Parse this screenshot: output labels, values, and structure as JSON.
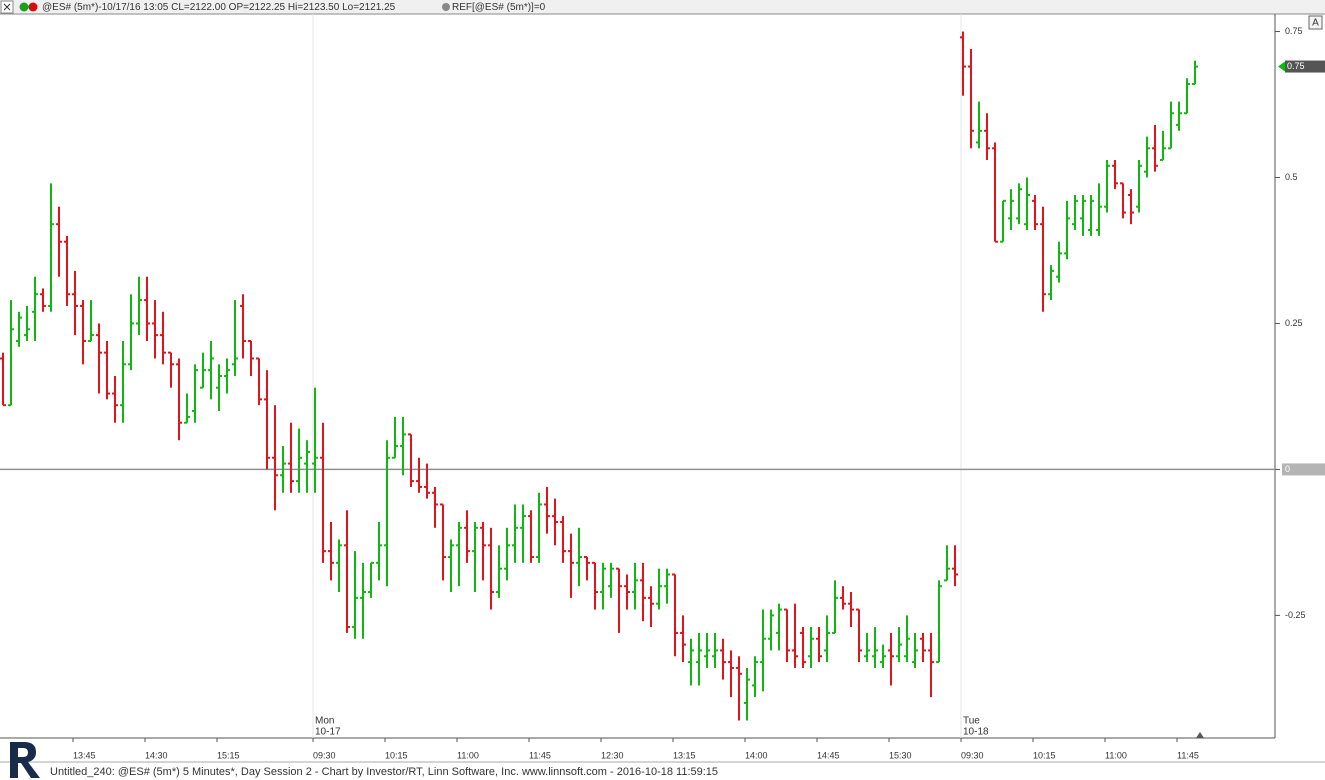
{
  "header": {
    "symbol_line": "@ES# (5m*)-10/17/16 13:05 CL=2122.00 OP=2122.25 Hi=2123.50 Lo=2121.25",
    "ref_line": "REF[@ES# (5m*)]=0",
    "button": "A"
  },
  "footer": "Untitled_240: @ES# (5m*) 5 Minutes*, Day Session 2 - Chart by Investor/RT, Linn Software, Inc. www.linnsoft.com - 2016-10-18 11:59:15",
  "chart_data": {
    "type": "ohlc",
    "categories": [
      null,
      null,
      null,
      null,
      null,
      null,
      null,
      null,
      null,
      "13:45",
      null,
      null,
      null,
      null,
      null,
      null,
      null,
      null,
      "14:30",
      null,
      null,
      null,
      null,
      null,
      null,
      null,
      null,
      "15:15",
      null,
      null,
      null,
      null,
      null,
      null,
      null,
      null,
      null,
      null,
      null,
      "09:30",
      null,
      null,
      null,
      null,
      null,
      null,
      null,
      null,
      "10:15",
      null,
      null,
      null,
      null,
      null,
      null,
      null,
      null,
      "11:00",
      null,
      null,
      null,
      null,
      null,
      null,
      null,
      null,
      "11:45",
      null,
      null,
      null,
      null,
      null,
      null,
      null,
      null,
      "12:30",
      null,
      null,
      null,
      null,
      null,
      null,
      null,
      null,
      "13:15",
      null,
      null,
      null,
      null,
      null,
      null,
      null,
      null,
      "14:00",
      null,
      null,
      null,
      null,
      null,
      null,
      null,
      null,
      "14:45",
      null,
      null,
      null,
      null,
      null,
      null,
      null,
      null,
      "15:30",
      null,
      null,
      null,
      null,
      null,
      null,
      null,
      null,
      "09:30",
      null,
      null,
      null,
      null,
      null,
      null,
      null,
      null,
      "10:15",
      null,
      null,
      null,
      null,
      null,
      null,
      null,
      null,
      "11:00",
      null,
      null,
      null,
      null,
      null,
      null,
      null,
      null,
      "11:45",
      null,
      null
    ],
    "open": [
      0.19,
      0.11,
      0.22,
      0.23,
      0.27,
      0.3,
      0.28,
      0.42,
      0.39,
      0.3,
      0.28,
      0.22,
      0.23,
      0.2,
      0.13,
      0.11,
      0.18,
      0.25,
      0.29,
      0.25,
      0.23,
      0.2,
      0.18,
      0.08,
      0.1,
      0.14,
      0.17,
      0.14,
      0.16,
      0.18,
      0.28,
      0.22,
      0.19,
      0.12,
      0.02,
      -0.01,
      0.01,
      -0.02,
      0.01,
      0.01,
      0.02,
      -0.14,
      -0.16,
      -0.13,
      -0.27,
      -0.22,
      -0.21,
      -0.16,
      -0.13,
      0.02,
      0.04,
      0.06,
      -0.02,
      -0.03,
      -0.04,
      -0.06,
      -0.15,
      -0.13,
      -0.1,
      -0.14,
      -0.1,
      -0.13,
      -0.21,
      -0.17,
      -0.13,
      -0.1,
      -0.08,
      -0.15,
      -0.06,
      -0.08,
      -0.09,
      -0.14,
      -0.16,
      -0.15,
      -0.16,
      -0.21,
      -0.2,
      -0.17,
      -0.2,
      -0.21,
      -0.19,
      -0.22,
      -0.23,
      -0.2,
      -0.18,
      -0.28,
      -0.33,
      -0.33,
      -0.32,
      -0.32,
      -0.31,
      -0.33,
      -0.34,
      -0.4,
      -0.37,
      -0.33,
      -0.29,
      -0.28,
      -0.24,
      -0.31,
      -0.28,
      -0.32,
      -0.29,
      -0.31,
      -0.28,
      -0.22,
      -0.23,
      -0.24,
      -0.32,
      -0.32,
      -0.33,
      -0.31,
      -0.32,
      -0.32,
      -0.33,
      -0.29,
      -0.31,
      -0.33,
      -0.19,
      -0.17,
      0.74,
      0.69,
      0.56,
      0.58,
      0.55,
      0.39,
      0.43,
      0.43,
      0.42,
      0.46,
      0.42,
      0.3,
      0.33,
      0.37,
      0.42,
      0.43,
      0.41,
      0.41,
      0.45,
      0.52,
      0.49,
      0.47,
      0.45,
      0.51,
      0.55,
      0.53,
      0.55,
      0.59,
      0.61,
      0.66
    ],
    "high": [
      0.2,
      0.29,
      0.27,
      0.28,
      0.33,
      0.31,
      0.49,
      0.45,
      0.4,
      0.34,
      0.29,
      0.29,
      0.25,
      0.22,
      0.16,
      0.22,
      0.3,
      0.33,
      0.33,
      0.29,
      0.27,
      0.2,
      0.19,
      0.13,
      0.18,
      0.2,
      0.22,
      0.18,
      0.19,
      0.29,
      0.3,
      0.22,
      0.19,
      0.17,
      0.11,
      0.04,
      0.08,
      0.07,
      0.05,
      0.14,
      0.08,
      -0.09,
      -0.12,
      -0.07,
      -0.14,
      -0.16,
      -0.16,
      -0.09,
      0.05,
      0.09,
      0.09,
      0.06,
      0.02,
      0.01,
      -0.03,
      -0.06,
      -0.12,
      -0.09,
      -0.07,
      -0.09,
      -0.09,
      -0.1,
      -0.13,
      -0.1,
      -0.06,
      -0.06,
      -0.07,
      -0.04,
      -0.03,
      -0.05,
      -0.08,
      -0.11,
      -0.1,
      -0.15,
      -0.16,
      -0.16,
      -0.16,
      -0.17,
      -0.18,
      -0.16,
      -0.16,
      -0.2,
      -0.17,
      -0.17,
      -0.18,
      -0.25,
      -0.29,
      -0.28,
      -0.28,
      -0.28,
      -0.29,
      -0.31,
      -0.32,
      -0.34,
      -0.32,
      -0.24,
      -0.24,
      -0.23,
      -0.24,
      -0.23,
      -0.27,
      -0.27,
      -0.27,
      -0.25,
      -0.19,
      -0.2,
      -0.21,
      -0.24,
      -0.28,
      -0.27,
      -0.3,
      -0.28,
      -0.27,
      -0.25,
      -0.28,
      -0.28,
      -0.28,
      -0.19,
      -0.13,
      -0.13,
      0.75,
      0.72,
      0.63,
      0.61,
      0.56,
      0.46,
      0.48,
      0.49,
      0.5,
      0.47,
      0.45,
      0.35,
      0.39,
      0.46,
      0.47,
      0.47,
      0.47,
      0.49,
      0.53,
      0.53,
      0.49,
      0.48,
      0.53,
      0.57,
      0.59,
      0.58,
      0.63,
      0.63,
      0.67,
      0.7
    ],
    "low": [
      0.11,
      0.11,
      0.21,
      0.22,
      0.22,
      0.27,
      0.27,
      0.33,
      0.28,
      0.23,
      0.18,
      0.22,
      0.13,
      0.12,
      0.08,
      0.08,
      0.17,
      0.23,
      0.22,
      0.19,
      0.18,
      0.14,
      0.05,
      0.08,
      0.08,
      0.14,
      0.12,
      0.1,
      0.13,
      0.16,
      0.19,
      0.16,
      0.11,
      0.0,
      -0.07,
      -0.04,
      -0.04,
      -0.04,
      -0.04,
      -0.04,
      -0.16,
      -0.19,
      -0.21,
      -0.28,
      -0.29,
      -0.29,
      -0.22,
      -0.19,
      -0.2,
      0.02,
      -0.01,
      -0.03,
      -0.04,
      -0.05,
      -0.1,
      -0.19,
      -0.21,
      -0.2,
      -0.16,
      -0.21,
      -0.19,
      -0.24,
      -0.22,
      -0.19,
      -0.16,
      -0.16,
      -0.16,
      -0.16,
      -0.11,
      -0.13,
      -0.16,
      -0.22,
      -0.2,
      -0.19,
      -0.24,
      -0.24,
      -0.22,
      -0.28,
      -0.24,
      -0.24,
      -0.26,
      -0.27,
      -0.24,
      -0.23,
      -0.32,
      -0.33,
      -0.37,
      -0.37,
      -0.34,
      -0.34,
      -0.36,
      -0.39,
      -0.43,
      -0.43,
      -0.39,
      -0.38,
      -0.31,
      -0.31,
      -0.33,
      -0.34,
      -0.34,
      -0.34,
      -0.33,
      -0.33,
      -0.28,
      -0.24,
      -0.27,
      -0.33,
      -0.33,
      -0.34,
      -0.34,
      -0.37,
      -0.33,
      -0.33,
      -0.34,
      -0.33,
      -0.39,
      -0.33,
      -0.19,
      -0.2,
      0.64,
      0.55,
      0.55,
      0.53,
      0.39,
      0.39,
      0.41,
      0.42,
      0.41,
      0.41,
      0.27,
      0.29,
      0.32,
      0.36,
      0.41,
      0.4,
      0.4,
      0.4,
      0.44,
      0.48,
      0.43,
      0.42,
      0.44,
      0.5,
      0.51,
      0.53,
      0.55,
      0.58,
      0.61,
      0.66
    ],
    "close": [
      0.11,
      0.24,
      0.26,
      0.24,
      0.3,
      0.28,
      0.42,
      0.39,
      0.3,
      0.28,
      0.22,
      0.23,
      0.2,
      0.13,
      0.11,
      0.18,
      0.25,
      0.29,
      0.25,
      0.23,
      0.2,
      0.18,
      0.08,
      0.09,
      0.17,
      0.17,
      0.19,
      0.16,
      0.17,
      0.19,
      0.22,
      0.19,
      0.12,
      0.02,
      -0.01,
      0.01,
      -0.02,
      0.02,
      0.03,
      0.02,
      -0.14,
      -0.16,
      -0.13,
      -0.27,
      -0.22,
      -0.21,
      -0.16,
      -0.13,
      0.02,
      0.04,
      0.06,
      -0.02,
      -0.03,
      -0.04,
      -0.06,
      -0.15,
      -0.13,
      -0.1,
      -0.14,
      -0.1,
      -0.13,
      -0.21,
      -0.17,
      -0.13,
      -0.1,
      -0.08,
      -0.15,
      -0.06,
      -0.08,
      -0.09,
      -0.14,
      -0.16,
      -0.15,
      -0.16,
      -0.21,
      -0.17,
      -0.17,
      -0.2,
      -0.21,
      -0.19,
      -0.22,
      -0.23,
      -0.2,
      -0.18,
      -0.28,
      -0.3,
      -0.31,
      -0.31,
      -0.31,
      -0.31,
      -0.33,
      -0.34,
      -0.35,
      -0.36,
      -0.33,
      -0.29,
      -0.25,
      -0.24,
      -0.31,
      -0.32,
      -0.33,
      -0.29,
      -0.32,
      -0.28,
      -0.22,
      -0.23,
      -0.24,
      -0.31,
      -0.31,
      -0.31,
      -0.32,
      -0.32,
      -0.3,
      -0.29,
      -0.31,
      -0.31,
      -0.33,
      -0.2,
      -0.17,
      -0.18,
      0.69,
      0.58,
      0.58,
      0.55,
      0.39,
      0.46,
      0.46,
      0.48,
      0.47,
      0.42,
      0.3,
      0.34,
      0.37,
      0.43,
      0.46,
      0.46,
      0.46,
      0.45,
      0.52,
      0.49,
      0.44,
      0.44,
      0.52,
      0.55,
      0.52,
      0.55,
      0.61,
      0.61,
      0.66,
      0.69
    ],
    "up_color": "#12b812",
    "down_color": "#e0141c",
    "ylim": [
      -0.46,
      0.78
    ],
    "yticks": [
      0.75,
      0.5,
      0.25,
      0,
      -0.25
    ],
    "ref_value": 0,
    "ref_label": "0",
    "last_label": "0.75",
    "sessions": [
      {
        "day": "Mon",
        "date": "10-17",
        "start": 39
      },
      {
        "day": "Tue",
        "date": "10-18",
        "start": 120
      }
    ]
  }
}
